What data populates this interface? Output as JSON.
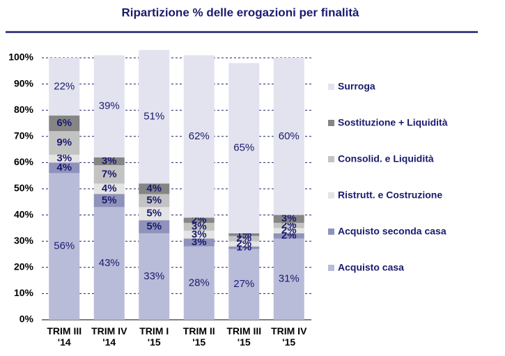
{
  "chart_data": {
    "type": "stacked_bar_100",
    "title": "Ripartizione % delle erogazioni per finalità",
    "categories": [
      "TRIM III\n'14",
      "TRIM IV\n'14",
      "TRIM I\n'15",
      "TRIM II\n'15",
      "TRIM III\n'15",
      "TRIM IV\n'15"
    ],
    "series": [
      {
        "name": "Acquisto casa",
        "color": "#b9bcd8",
        "values": [
          56,
          43,
          33,
          28,
          27,
          31
        ],
        "value_labels": [
          "56%",
          "43%",
          "33%",
          "28%",
          "27%",
          "31%"
        ]
      },
      {
        "name": "Acquisto seconda casa",
        "color": "#8f93bb",
        "values": [
          4,
          5,
          5,
          3,
          1,
          2
        ],
        "value_labels": [
          "4%",
          "5%",
          "5%",
          "3%",
          "1%",
          "2%"
        ]
      },
      {
        "name": "Ristrutt. e Costruzione",
        "color": "#e4e4e4",
        "values": [
          3,
          4,
          5,
          3,
          2,
          2
        ],
        "value_labels": [
          "3%",
          "4%",
          "5%",
          "3%",
          "2%",
          "2%"
        ]
      },
      {
        "name": "Consolid. e Liquidità",
        "color": "#c3c3c3",
        "values": [
          9,
          7,
          5,
          3,
          2,
          2
        ],
        "value_labels": [
          "9%",
          "7%",
          "5%",
          "3%",
          "2%",
          "2%"
        ]
      },
      {
        "name": "Sostituzione + Liquidità",
        "color": "#858585",
        "values": [
          6,
          3,
          4,
          2,
          1,
          3
        ],
        "value_labels": [
          "6%",
          "3%",
          "4%",
          "2%",
          "1%",
          "3%"
        ]
      },
      {
        "name": "Surroga",
        "color": "#e3e3ef",
        "values": [
          22,
          39,
          51,
          62,
          65,
          60
        ],
        "value_labels": [
          "22%",
          "39%",
          "51%",
          "62%",
          "65%",
          "60%"
        ]
      }
    ],
    "ylim": [
      0,
      100
    ],
    "yticks": [
      {
        "value": 0,
        "label": "0%"
      },
      {
        "value": 10,
        "label": "10%"
      },
      {
        "value": 20,
        "label": "20%"
      },
      {
        "value": 30,
        "label": "30%"
      },
      {
        "value": 40,
        "label": "40%"
      },
      {
        "value": 50,
        "label": "50%"
      },
      {
        "value": 60,
        "label": "60%"
      },
      {
        "value": 70,
        "label": "70%"
      },
      {
        "value": 80,
        "label": "80%"
      },
      {
        "value": 90,
        "label": "90%"
      },
      {
        "value": 100,
        "label": "100%"
      }
    ],
    "grid": true
  }
}
